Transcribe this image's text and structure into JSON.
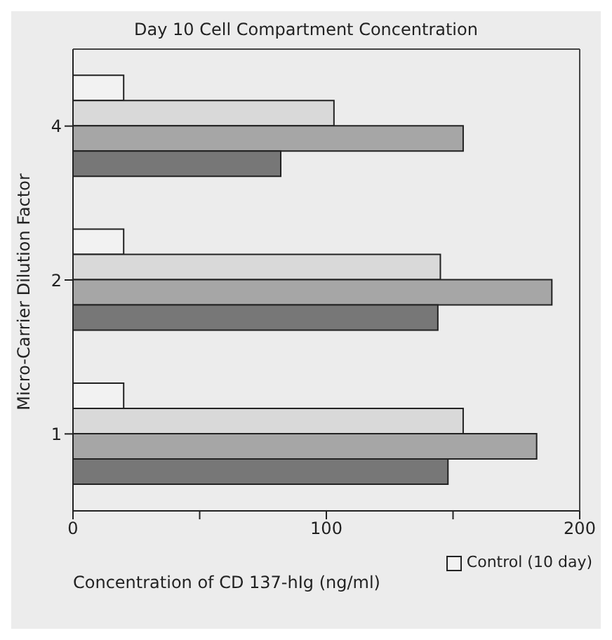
{
  "chart_data": {
    "type": "bar",
    "orientation": "horizontal",
    "title": "Day 10 Cell Compartment Concentration",
    "xlabel": "Concentration of CD 137-hIg (ng/ml)",
    "ylabel": "Micro-Carrier Dilution Factor",
    "categories": [
      "4",
      "2",
      "1"
    ],
    "series": [
      {
        "name": "Control (10 day)",
        "color": "#f2f2f2",
        "values": [
          20,
          20,
          20
        ]
      },
      {
        "color": "#d9d9d9",
        "values": [
          103,
          145,
          154
        ]
      },
      {
        "color": "#a6a6a6",
        "values": [
          154,
          189,
          183
        ]
      },
      {
        "color": "#777777",
        "values": [
          82,
          144,
          148
        ]
      }
    ],
    "xlim": [
      0,
      200
    ],
    "xticks": [
      0,
      {
        "value": 50,
        "label": null
      },
      100,
      {
        "value": 150,
        "label": null
      },
      200
    ],
    "grid": false,
    "legend": "bottom right"
  }
}
